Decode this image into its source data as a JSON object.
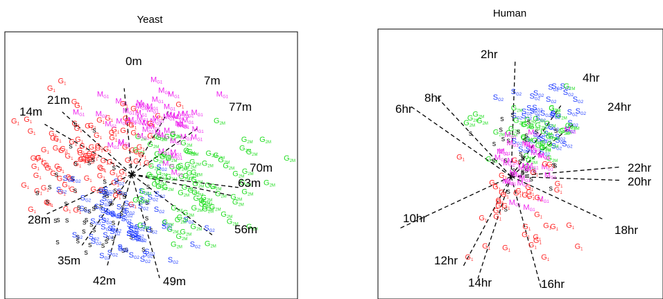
{
  "colors": {
    "G1": "#ff2a2a",
    "S": "#111111",
    "SG2": "#1f3cff",
    "G2M": "#22dd22",
    "M": "#ee22ee"
  },
  "charts": [
    {
      "title": "Yeast",
      "type": "scatter",
      "time_labels": [
        "0m",
        "7m",
        "77m",
        "70m",
        "63m",
        "56m",
        "49m",
        "42m",
        "35m",
        "28m",
        "14m",
        "21m"
      ]
    },
    {
      "title": "Human",
      "type": "scatter",
      "time_labels": [
        "2hr",
        "4hr",
        "24hr",
        "22hr",
        "20hr",
        "18hr",
        "16hr",
        "14hr",
        "12hr",
        "10hr",
        "6hr",
        "8hr"
      ]
    }
  ],
  "chart_data": [
    {
      "type": "scatter",
      "title": "Yeast",
      "point_classes": [
        "G1",
        "S",
        "SG2",
        "G2M",
        "M"
      ],
      "time_axes": [
        {
          "label": "0m",
          "angle": 95
        },
        {
          "label": "7m",
          "angle": 60
        },
        {
          "label": "77m",
          "angle": 35
        },
        {
          "label": "70m",
          "angle": -7
        },
        {
          "label": "63m",
          "angle": -12
        },
        {
          "label": "56m",
          "angle": -37
        },
        {
          "label": "49m",
          "angle": -75
        },
        {
          "label": "42m",
          "angle": -105
        },
        {
          "label": "35m",
          "angle": -125
        },
        {
          "label": "28m",
          "angle": -155
        },
        {
          "label": "14m",
          "angle": 150
        },
        {
          "label": "21m",
          "angle": 138
        }
      ]
    },
    {
      "type": "scatter",
      "title": "Human",
      "point_classes": [
        "G1",
        "S",
        "SG2",
        "G2M",
        "M"
      ],
      "time_axes": [
        {
          "label": "2hr",
          "angle": 88
        },
        {
          "label": "4hr",
          "angle": 55
        },
        {
          "label": "24hr",
          "angle": 40
        },
        {
          "label": "22hr",
          "angle": 5
        },
        {
          "label": "20hr",
          "angle": -2
        },
        {
          "label": "18hr",
          "angle": -25
        },
        {
          "label": "16hr",
          "angle": -75
        },
        {
          "label": "14hr",
          "angle": -108
        },
        {
          "label": "12hr",
          "angle": -118
        },
        {
          "label": "10hr",
          "angle": -155
        },
        {
          "label": "6hr",
          "angle": 145
        },
        {
          "label": "8hr",
          "angle": 133
        }
      ]
    }
  ]
}
